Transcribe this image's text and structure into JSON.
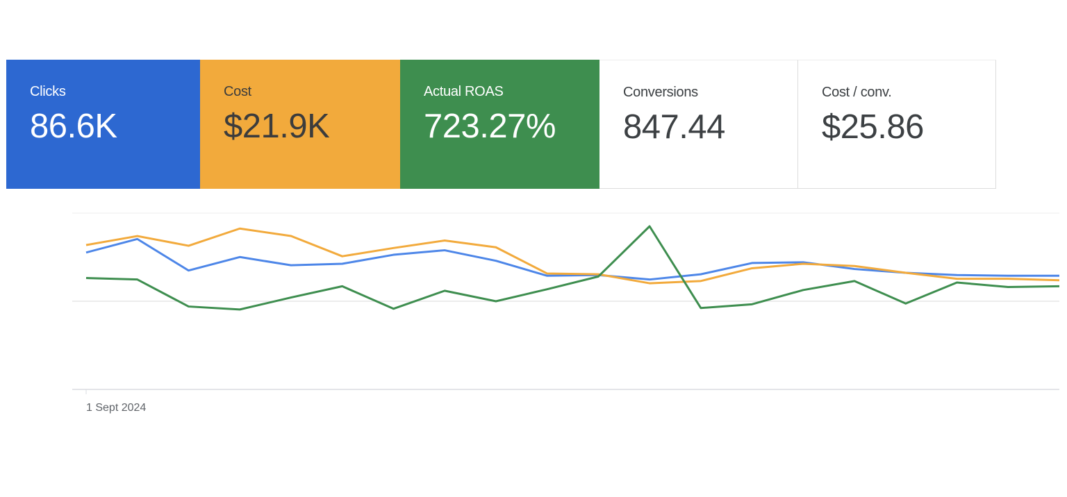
{
  "scorecards": [
    {
      "label": "Clicks",
      "value": "86.6K",
      "color": "#2d68d1",
      "active": true
    },
    {
      "label": "Cost",
      "value": "$21.9K",
      "color": "#f2aa3c",
      "active": true
    },
    {
      "label": "Actual ROAS",
      "value": "723.27%",
      "color": "#3e8e4f",
      "active": true
    },
    {
      "label": "Conversions",
      "value": "847.44",
      "color": "#ffffff",
      "active": false
    },
    {
      "label": "Cost / conv.",
      "value": "$25.86",
      "color": "#ffffff",
      "active": false
    }
  ],
  "chart_data": {
    "type": "line",
    "x": [
      1,
      2,
      3,
      4,
      5,
      6,
      7,
      8,
      9,
      10,
      11,
      12,
      13,
      14,
      15,
      16,
      17,
      18,
      19,
      20
    ],
    "x_tick_labels": [
      "1 Sept 2024"
    ],
    "ylim": [
      0,
      100
    ],
    "grid": true,
    "series": [
      {
        "name": "Clicks",
        "color": "#4d86e8",
        "values": [
          65,
          83,
          41,
          59,
          48,
          50,
          62,
          68,
          54,
          34,
          35,
          29,
          36,
          51,
          52,
          43,
          38,
          35,
          34,
          34
        ]
      },
      {
        "name": "Cost",
        "color": "#f2aa3c",
        "values": [
          75,
          87,
          74,
          97,
          87,
          60,
          71,
          81,
          72,
          37,
          36,
          24,
          27,
          44,
          50,
          47,
          38,
          30,
          30,
          28
        ]
      },
      {
        "name": "Actual ROAS",
        "color": "#3e8e4f",
        "values": [
          31,
          29,
          -7,
          -11,
          5,
          20,
          -10,
          14,
          0,
          16,
          33,
          100,
          -9,
          -4,
          15,
          27,
          -3,
          25,
          19,
          20
        ]
      }
    ]
  }
}
